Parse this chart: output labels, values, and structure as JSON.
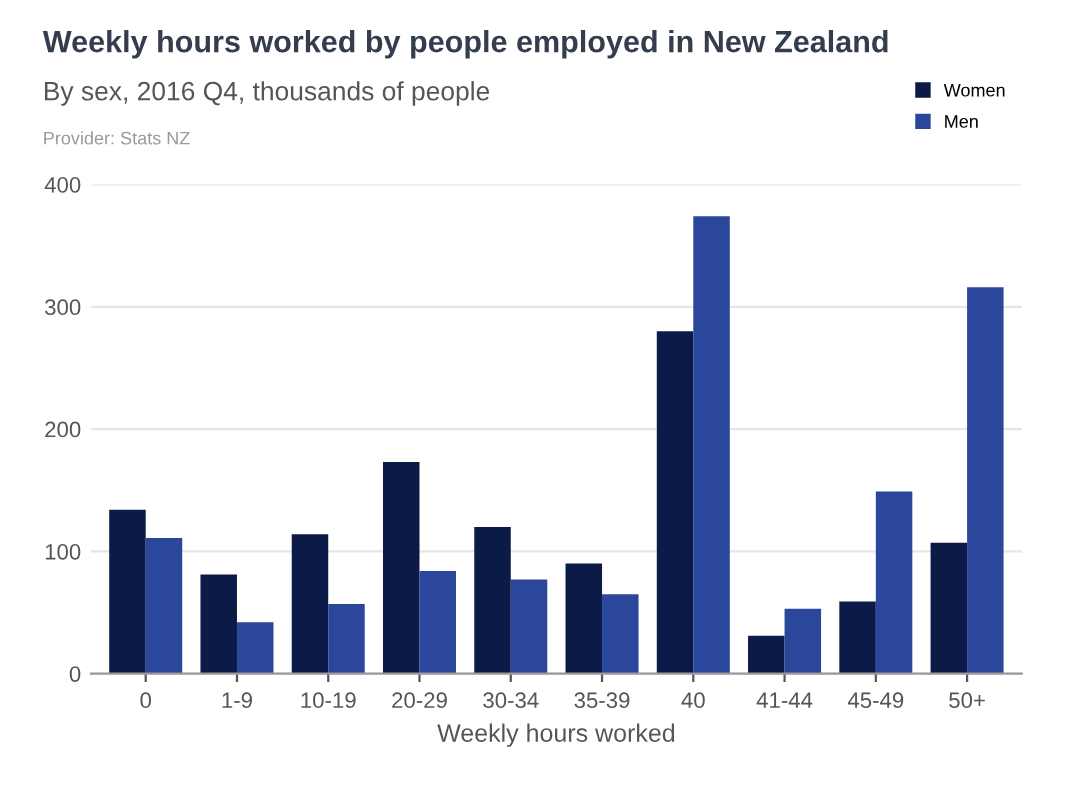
{
  "chart_data": {
    "type": "bar",
    "title": "Weekly hours worked by people employed in New Zealand",
    "subtitle": "By sex, 2016 Q4, thousands of people",
    "annotations": [
      "Provider: Stats NZ"
    ],
    "xlabel": "Weekly hours worked",
    "categories": [
      "0",
      "1-9",
      "10-19",
      "20-29",
      "30-34",
      "35-39",
      "40",
      "41-44",
      "45-49",
      "50+"
    ],
    "series": [
      {
        "name": "Women",
        "color": "#0c1a48",
        "values": [
          134,
          81,
          114,
          173,
          120,
          90,
          280,
          31,
          59,
          107
        ]
      },
      {
        "name": "Men",
        "color": "#2b479c",
        "values": [
          111,
          42,
          57,
          84,
          77,
          65,
          374,
          53,
          149,
          316
        ]
      }
    ],
    "ylim": [
      0,
      400
    ],
    "yticks": [
      0,
      100,
      200,
      300,
      400
    ],
    "grid": "y",
    "legend": "top right"
  }
}
